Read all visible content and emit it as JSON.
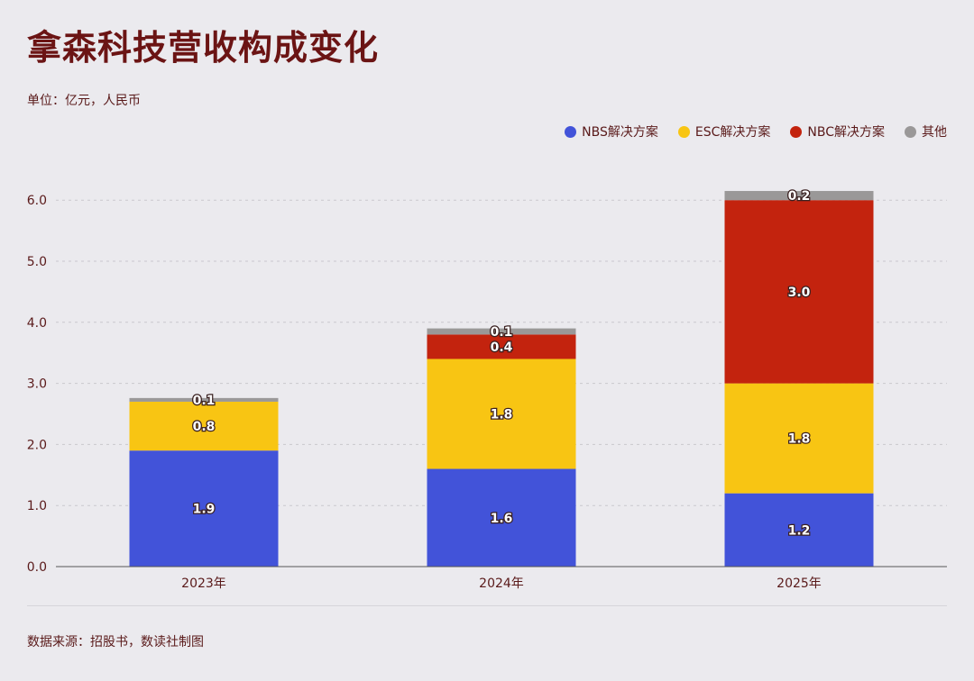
{
  "title": "拿森科技营收构成变化",
  "unit": "单位：亿元，人民币",
  "source": "数据来源：招股书，数读社制图",
  "colors": {
    "NBS": "#4253d9",
    "ESC": "#f8c513",
    "NBC": "#c3230e",
    "other": "#9a9898"
  },
  "chart_data": {
    "type": "bar",
    "stacked": true,
    "categories": [
      "2023年",
      "2024年",
      "2025年"
    ],
    "series": [
      {
        "key": "NBS",
        "name": "NBS解决方案",
        "values": [
          1.9,
          1.6,
          1.2
        ],
        "labels": [
          "1.9",
          "1.6",
          "1.2"
        ]
      },
      {
        "key": "ESC",
        "name": "ESC解决方案",
        "values": [
          0.8,
          1.8,
          1.8
        ],
        "labels": [
          "0.8",
          "1.8",
          "1.8"
        ]
      },
      {
        "key": "NBC",
        "name": "NBC解决方案",
        "values": [
          0,
          0.4,
          3.0
        ],
        "labels": [
          "",
          "0.4",
          "3.0"
        ]
      },
      {
        "key": "other",
        "name": "其他",
        "values": [
          0.06,
          0.1,
          0.15
        ],
        "labels": [
          "0.1",
          "0.1",
          "0.2"
        ]
      }
    ],
    "yticks": [
      "0.0",
      "1.0",
      "2.0",
      "3.0",
      "4.0",
      "5.0",
      "6.0"
    ],
    "ylim": [
      0,
      6.2
    ],
    "grid": true,
    "legend_position": "top-right"
  }
}
